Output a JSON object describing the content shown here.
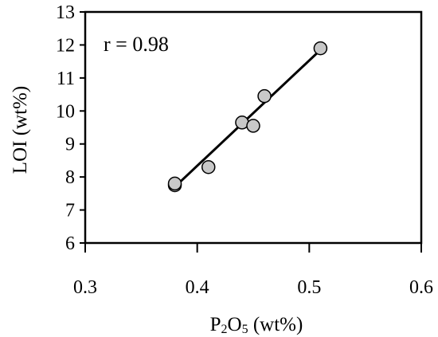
{
  "chart_data": {
    "type": "scatter",
    "title": "",
    "xlabel": "P2O5 (wt%)",
    "xlabel_parts": {
      "prefix": "P",
      "sub1": "2",
      "mid": "O",
      "sub2": "5",
      "suffix": " (wt%)"
    },
    "ylabel": "LOI (wt%)",
    "xlim": [
      0.3,
      0.6
    ],
    "ylim": [
      6,
      13
    ],
    "x_ticks": [
      0.3,
      0.4,
      0.5,
      0.6
    ],
    "x_tick_labels": [
      "0.3",
      "0.4",
      "0.5",
      "0.6"
    ],
    "y_ticks": [
      6,
      7,
      8,
      9,
      10,
      11,
      12,
      13
    ],
    "y_tick_labels": [
      "6",
      "7",
      "8",
      "9",
      "10",
      "11",
      "12",
      "13"
    ],
    "annotation": "r = 0.98",
    "grid": false,
    "points": [
      {
        "x": 0.38,
        "y": 7.75
      },
      {
        "x": 0.38,
        "y": 7.8
      },
      {
        "x": 0.41,
        "y": 8.3
      },
      {
        "x": 0.44,
        "y": 9.65
      },
      {
        "x": 0.45,
        "y": 9.55
      },
      {
        "x": 0.46,
        "y": 10.45
      },
      {
        "x": 0.51,
        "y": 11.9
      }
    ],
    "trendline": {
      "x": [
        0.38,
        0.51
      ],
      "y": [
        7.7,
        11.85
      ]
    },
    "colors": {
      "marker_fill": "#c8c8c8",
      "marker_stroke": "#000000",
      "line": "#000000"
    }
  }
}
